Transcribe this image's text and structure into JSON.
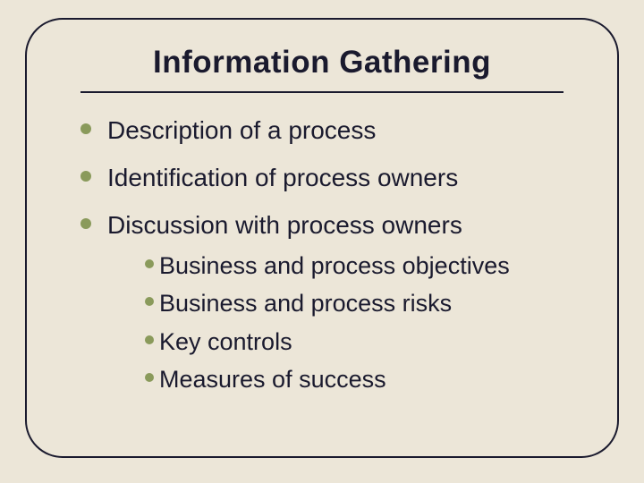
{
  "slide": {
    "title": "Information Gathering",
    "background_color": "#ece6d8",
    "frame_border_color": "#1a1a2e",
    "frame_border_width": 2.5,
    "frame_border_radius": 42,
    "divider_color": "#1a1a2e",
    "text_color": "#1a1a2e",
    "bullet_color": "#8a9a5b",
    "title_fontsize": 35,
    "body_fontsize": 28,
    "sub_fontsize": 27,
    "items": [
      {
        "text": "Description of a process",
        "children": []
      },
      {
        "text": "Identification of process owners",
        "children": []
      },
      {
        "text": "Discussion with process owners",
        "children": [
          {
            "text": "Business and process objectives"
          },
          {
            "text": "Business and process risks"
          },
          {
            "text": "Key controls"
          },
          {
            "text": "Measures of success"
          }
        ]
      }
    ]
  }
}
